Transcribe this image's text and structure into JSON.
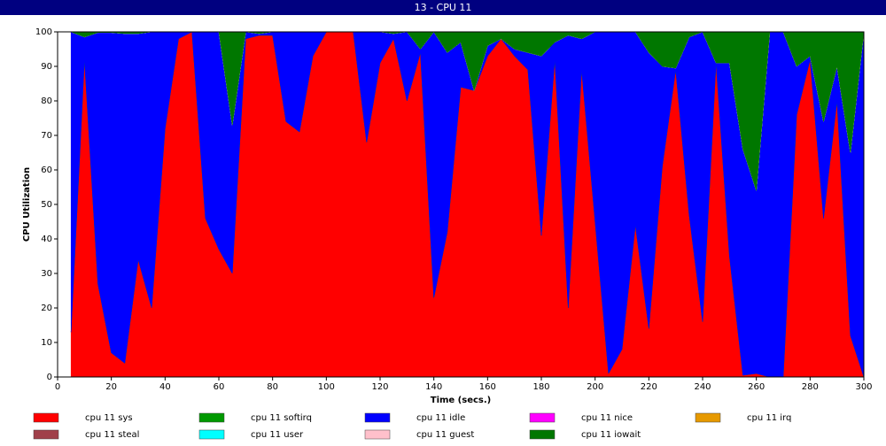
{
  "chart_data": {
    "type": "stacked_area",
    "title": "13 - CPU 11",
    "xlabel": "Time (secs.)",
    "ylabel": "CPU Utilization",
    "x": [
      5,
      10,
      15,
      20,
      25,
      30,
      35,
      40,
      45,
      50,
      55,
      60,
      65,
      70,
      75,
      80,
      85,
      90,
      95,
      100,
      105,
      110,
      115,
      120,
      125,
      130,
      135,
      140,
      145,
      150,
      155,
      160,
      165,
      170,
      175,
      180,
      185,
      190,
      195,
      200,
      205,
      210,
      215,
      220,
      225,
      230,
      235,
      240,
      245,
      250,
      255,
      260,
      265,
      270,
      275,
      280,
      285,
      290,
      295,
      300
    ],
    "xlim": [
      0,
      300
    ],
    "xticks": [
      0,
      20,
      40,
      60,
      80,
      100,
      120,
      140,
      160,
      180,
      200,
      220,
      240,
      260,
      280,
      300
    ],
    "ylim": [
      0,
      100
    ],
    "yticks": [
      0,
      10,
      20,
      30,
      40,
      50,
      60,
      70,
      80,
      90,
      100
    ],
    "series": [
      {
        "name": "cpu 11 sys",
        "color": "#ff0000",
        "values": [
          13,
          92,
          27,
          7,
          4,
          34,
          20,
          72,
          98,
          100,
          46,
          37,
          30,
          98,
          99,
          99,
          74,
          71,
          93,
          100,
          100,
          100,
          68,
          91,
          98,
          80,
          94,
          23,
          42,
          84,
          83,
          93,
          98,
          93,
          89,
          41,
          92,
          20,
          89,
          45,
          1,
          8,
          44,
          14,
          61,
          89,
          47,
          16,
          91,
          35,
          0.5,
          1,
          0,
          0,
          76,
          92,
          46,
          80,
          12,
          0
        ]
      },
      {
        "name": "cpu 11 softirq",
        "color": "#009900",
        "values": [
          0,
          0,
          0,
          0,
          0,
          0,
          0,
          0,
          0,
          0,
          0,
          0,
          0,
          0,
          0,
          0,
          0,
          0,
          0,
          0,
          0,
          0,
          0,
          0,
          0,
          0,
          0,
          0,
          0,
          0,
          0,
          0,
          0,
          0,
          0,
          0,
          0,
          0,
          0,
          0,
          0,
          0,
          0,
          0,
          0,
          0,
          0,
          0,
          0,
          0,
          0,
          0,
          0,
          0,
          0,
          0,
          0,
          0,
          0,
          0
        ]
      },
      {
        "name": "cpu 11 idle",
        "color": "#0000ff",
        "values": [
          87,
          6.5,
          72.8,
          92.8,
          95.5,
          65.5,
          80,
          28,
          2,
          0,
          54,
          63,
          43,
          2,
          0.5,
          1,
          26,
          29,
          7,
          0,
          0,
          0,
          32,
          9,
          1.5,
          20,
          1,
          77,
          52,
          13,
          0,
          3,
          0,
          2,
          5,
          52,
          5,
          79,
          9,
          55,
          99,
          92,
          56,
          80,
          29,
          0.5,
          51.5,
          84,
          0,
          56,
          65.5,
          53,
          100,
          100,
          14,
          1,
          28,
          10,
          53,
          100
        ]
      },
      {
        "name": "cpu 11 nice",
        "color": "#ff00ff",
        "values": [
          0,
          0,
          0,
          0,
          0,
          0,
          0,
          0,
          0,
          0,
          0,
          0,
          0,
          0,
          0,
          0,
          0,
          0,
          0,
          0,
          0,
          0,
          0,
          0,
          0,
          0,
          0,
          0,
          0,
          0,
          0,
          0,
          0,
          0,
          0,
          0,
          0,
          0,
          0,
          0,
          0,
          0,
          0,
          0,
          0,
          0,
          0,
          0,
          0,
          0,
          0,
          0,
          0,
          0,
          0,
          0,
          0,
          0,
          0,
          0
        ]
      },
      {
        "name": "cpu 11 irq",
        "color": "#e69900",
        "values": [
          0,
          0,
          0,
          0,
          0,
          0,
          0,
          0,
          0,
          0,
          0,
          0,
          0,
          0,
          0,
          0,
          0,
          0,
          0,
          0,
          0,
          0,
          0,
          0,
          0,
          0,
          0,
          0,
          0,
          0,
          0,
          0,
          0,
          0,
          0,
          0,
          0,
          0,
          0,
          0,
          0,
          0,
          0,
          0,
          0,
          0,
          0,
          0,
          0,
          0,
          0,
          0,
          0,
          0,
          0,
          0,
          0,
          0,
          0,
          0
        ]
      },
      {
        "name": "cpu 11 steal",
        "color": "#a0404a",
        "values": [
          0,
          0,
          0,
          0,
          0,
          0,
          0,
          0,
          0,
          0,
          0,
          0,
          0,
          0,
          0,
          0,
          0,
          0,
          0,
          0,
          0,
          0,
          0,
          0,
          0,
          0,
          0,
          0,
          0,
          0,
          0,
          0,
          0,
          0,
          0,
          0,
          0,
          0,
          0,
          0,
          0,
          0,
          0,
          0,
          0,
          0,
          0,
          0,
          0,
          0,
          0,
          0,
          0,
          0,
          0,
          0,
          0,
          0,
          0,
          0
        ]
      },
      {
        "name": "cpu 11 user",
        "color": "#00ffff",
        "values": [
          0,
          0,
          0,
          0,
          0,
          0,
          0,
          0,
          0,
          0,
          0,
          0,
          0,
          0,
          0,
          0,
          0,
          0,
          0,
          0,
          0,
          0,
          0,
          0,
          0,
          0,
          0,
          0,
          0,
          0,
          0,
          0,
          0,
          0,
          0,
          0,
          0,
          0,
          0,
          0,
          0,
          0,
          0,
          0,
          0,
          0,
          0,
          0,
          0,
          0,
          0,
          0,
          0,
          0,
          0,
          0,
          0,
          0,
          0,
          0
        ]
      },
      {
        "name": "cpu 11 guest",
        "color": "#ffc0cb",
        "values": [
          0,
          0,
          0,
          0,
          0,
          0,
          0,
          0,
          0,
          0,
          0,
          0,
          0,
          0,
          0,
          0,
          0,
          0,
          0,
          0,
          0,
          0,
          0,
          0,
          0,
          0,
          0,
          0,
          0,
          0,
          0,
          0,
          0,
          0,
          0,
          0,
          0,
          0,
          0,
          0,
          0,
          0,
          0,
          0,
          0,
          0,
          0,
          0,
          0,
          0,
          0,
          0,
          0,
          0,
          0,
          0,
          0,
          0,
          0,
          0
        ]
      },
      {
        "name": "cpu 11 iowait",
        "color": "#007700",
        "values": [
          0,
          1.5,
          0.2,
          0.2,
          0.5,
          0.5,
          0,
          0,
          0,
          0,
          0,
          0,
          27,
          0,
          0.5,
          0,
          0,
          0,
          0,
          0,
          0,
          0,
          0,
          0,
          0.5,
          0,
          5,
          0,
          6,
          3,
          17,
          4,
          2,
          5,
          6,
          7,
          3,
          1,
          2,
          0,
          0,
          0,
          0,
          6,
          10,
          10.5,
          1.5,
          0,
          9,
          9,
          34,
          46,
          0,
          0,
          10,
          7,
          26,
          10,
          35,
          0
        ]
      }
    ]
  }
}
